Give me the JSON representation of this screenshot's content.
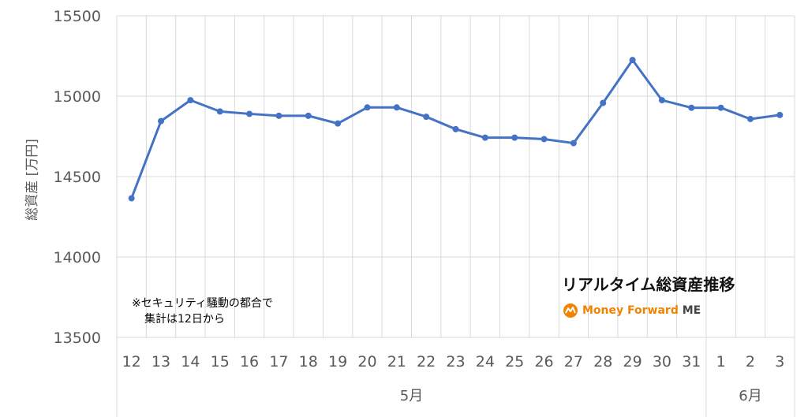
{
  "chart_data": {
    "type": "line",
    "ylabel": "総資産 [万円]",
    "ylim": [
      13500,
      15500
    ],
    "yticks": [
      "15500",
      "15000",
      "14500",
      "14000",
      "13500"
    ],
    "categories": [
      "12",
      "13",
      "14",
      "15",
      "16",
      "17",
      "18",
      "19",
      "20",
      "21",
      "22",
      "23",
      "24",
      "25",
      "26",
      "27",
      "28",
      "29",
      "30",
      "31",
      "1",
      "2",
      "3"
    ],
    "values": [
      14365,
      14845,
      14975,
      14905,
      14890,
      14878,
      14878,
      14830,
      14930,
      14930,
      14872,
      14795,
      14742,
      14742,
      14733,
      14708,
      14958,
      15225,
      14975,
      14928,
      14928,
      14858,
      14883
    ],
    "months": [
      {
        "label": "5月",
        "start": 0,
        "end": 19
      },
      {
        "label": "6月",
        "start": 20,
        "end": 22
      }
    ],
    "grid": true,
    "line_color": "#4472C4"
  },
  "note": {
    "line1": "※セキュリティ騒動の都合で",
    "line2": "集計は12日から"
  },
  "badge": {
    "title": "リアルタイム総資産推移",
    "brand": "Money Forward",
    "brand_suffix": "ME",
    "brand_color": "#f08300"
  }
}
